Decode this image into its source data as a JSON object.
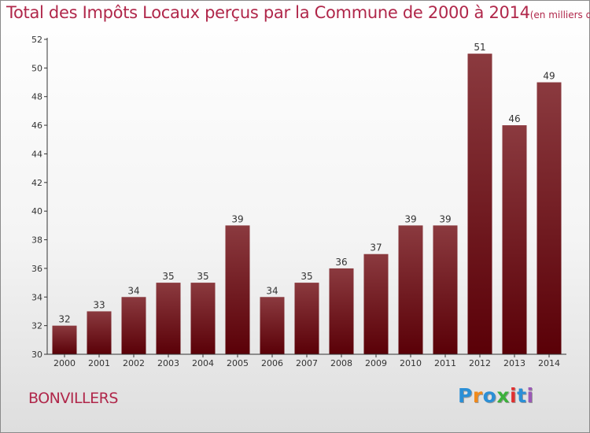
{
  "header": {
    "title": "Total des Impôts Locaux perçus par la Commune de 2000 à 2014",
    "unit": "(en milliers d'€)"
  },
  "commune": "BONVILLERS",
  "logo": {
    "letters": [
      "P",
      "r",
      "o",
      "x",
      "i",
      "t",
      "i"
    ],
    "colors": [
      "#2b8fd6",
      "#f08a1c",
      "#2b8fd6",
      "#3cb03c",
      "#e03030",
      "#2b8fd6",
      "#9b59b6"
    ]
  },
  "colors": {
    "bar_top": "#8b3a3f",
    "bar_bottom": "#5a0007",
    "title": "#b0274a"
  },
  "chart_data": {
    "type": "bar",
    "categories": [
      "2000",
      "2001",
      "2002",
      "2003",
      "2004",
      "2005",
      "2006",
      "2007",
      "2008",
      "2009",
      "2010",
      "2011",
      "2012",
      "2013",
      "2014"
    ],
    "values": [
      32,
      33,
      34,
      35,
      35,
      39,
      34,
      35,
      36,
      37,
      39,
      39,
      51,
      46,
      49
    ],
    "title": "Total des Impôts Locaux perçus par la Commune de 2000 à 2014",
    "xlabel": "",
    "ylabel": "",
    "ylim": [
      30,
      52
    ],
    "yticks": [
      30,
      32,
      34,
      36,
      38,
      40,
      42,
      44,
      46,
      48,
      50,
      52
    ],
    "grid": false
  }
}
